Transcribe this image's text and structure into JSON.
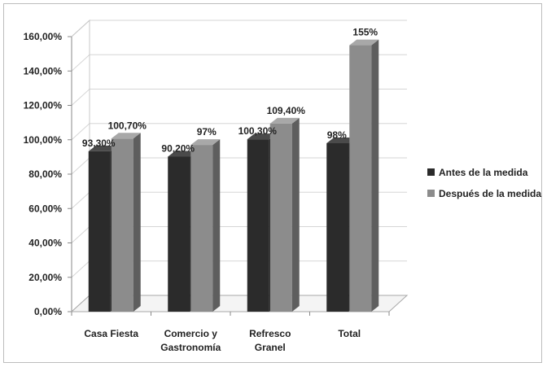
{
  "chart_data": {
    "type": "bar",
    "categories": [
      "Casa Fiesta",
      "Comercio y Gastronomía",
      "Refresco Granel",
      "Total"
    ],
    "category_lines": [
      [
        "Casa Fiesta"
      ],
      [
        "Comercio y",
        "Gastronomía"
      ],
      [
        "Refresco",
        "Granel"
      ],
      [
        "Total"
      ]
    ],
    "series": [
      {
        "name": "Antes de la medida",
        "values": [
          93.3,
          90.2,
          100.3,
          98
        ],
        "labels": [
          "93,30%",
          "90,20%",
          "100,30%",
          "98%"
        ],
        "color": "#2b2b2b"
      },
      {
        "name": "Después de la medida",
        "values": [
          100.7,
          97,
          109.4,
          155
        ],
        "labels": [
          "100,70%",
          "97%",
          "109,40%",
          "155%"
        ],
        "color": "#8c8c8c"
      }
    ],
    "ylim": [
      0,
      160
    ],
    "yticks": [
      0,
      20,
      40,
      60,
      80,
      100,
      120,
      140,
      160
    ],
    "ytick_labels": [
      "0,00%",
      "20,00%",
      "40,00%",
      "60,00%",
      "80,00%",
      "100,00%",
      "120,00%",
      "140,00%",
      "160,00%"
    ],
    "grid": true,
    "legend_position": "right",
    "style": "3d"
  }
}
